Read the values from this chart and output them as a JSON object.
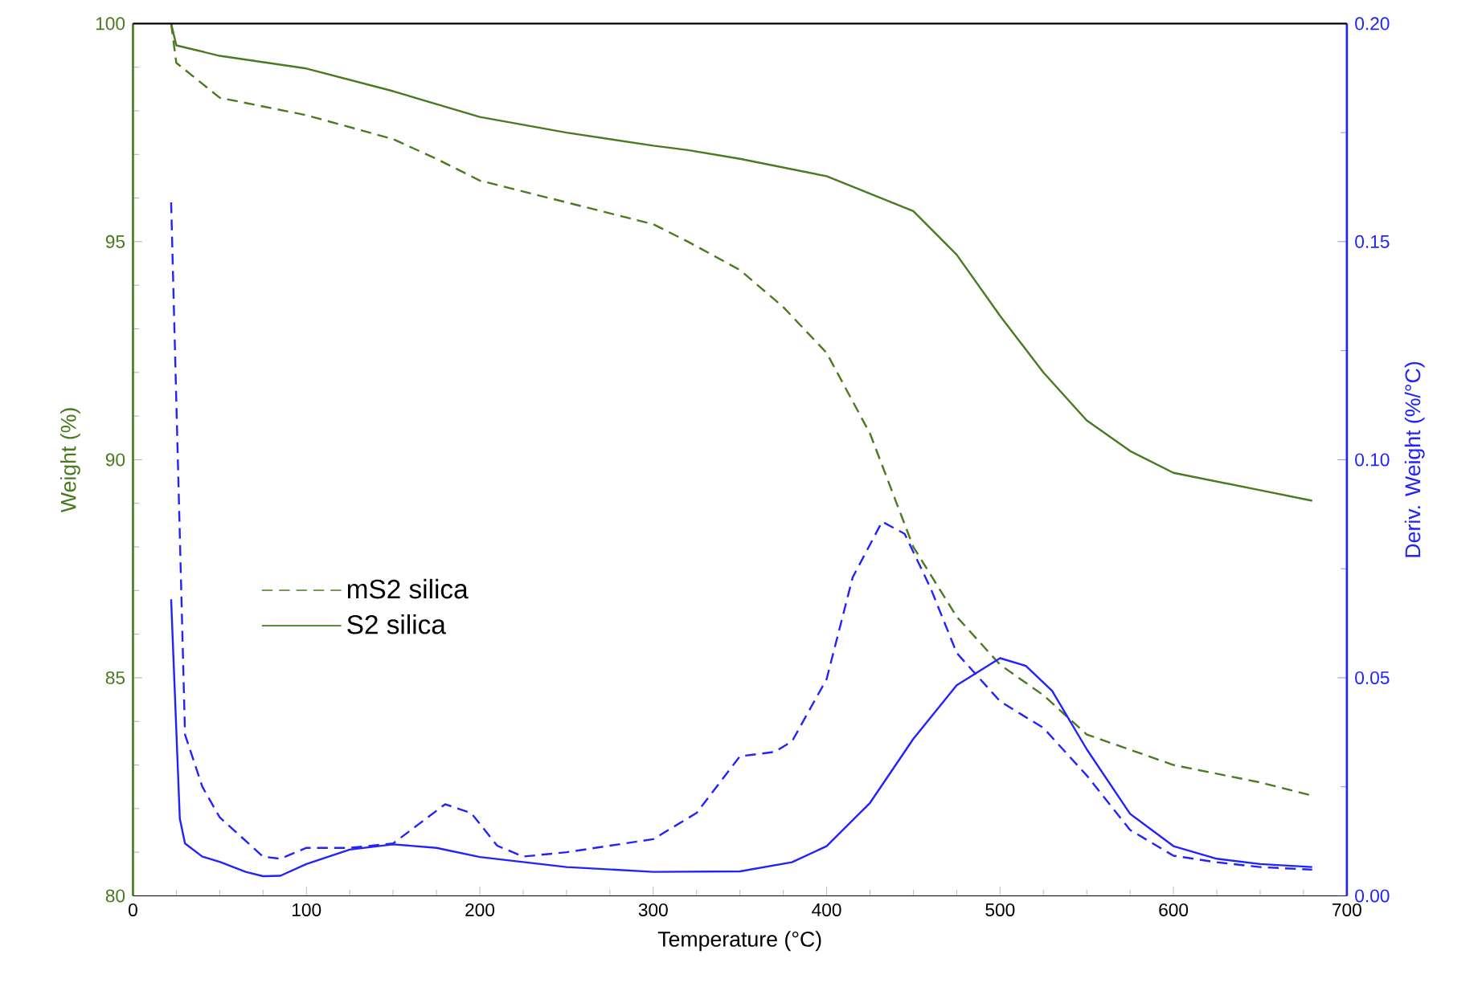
{
  "chart_data": {
    "type": "line",
    "xlabel": "Temperature (°C)",
    "ylabel": "Weight (%)",
    "y2label": "Deriv. Weight (%/°C)",
    "xlim": [
      0,
      700
    ],
    "xticks": [
      0,
      100,
      200,
      300,
      400,
      500,
      600,
      700
    ],
    "ylim": [
      80,
      100
    ],
    "yticks": [
      80,
      85,
      90,
      95,
      100
    ],
    "y2lim": [
      0,
      0.2
    ],
    "y2ticks": [
      {
        "value": 0,
        "label": "0.00"
      },
      {
        "value": 0.05,
        "label": "0.05"
      },
      {
        "value": 0.1,
        "label": "0.10"
      },
      {
        "value": 0.15,
        "label": "0.15"
      },
      {
        "value": 0.2,
        "label": "0.20"
      }
    ],
    "legend": "center left",
    "grid": false,
    "series": [
      {
        "name": "mS2 silica",
        "color": "#4a7a20",
        "line_style": "dashed",
        "x": [
          22,
          25,
          50,
          100,
          150,
          175,
          200,
          250,
          300,
          320,
          350,
          375,
          400,
          425,
          450,
          475,
          500,
          525,
          550,
          600,
          650,
          680
        ],
        "values": [
          100,
          99.1,
          98.3,
          97.9,
          97.35,
          96.9,
          96.4,
          95.9,
          95.4,
          95.0,
          94.35,
          93.5,
          92.45,
          90.6,
          88.0,
          86.4,
          85.3,
          84.6,
          83.7,
          83.0,
          82.6,
          82.3
        ]
      },
      {
        "name": "S2 silica",
        "color": "#4a7a20",
        "line_style": "solid",
        "x": [
          22,
          25,
          50,
          100,
          150,
          200,
          250,
          300,
          320,
          350,
          400,
          450,
          475,
          500,
          525,
          550,
          575,
          600,
          650,
          680
        ],
        "values": [
          100,
          99.5,
          99.26,
          98.97,
          98.45,
          97.86,
          97.5,
          97.2,
          97.1,
          96.9,
          96.5,
          95.7,
          94.7,
          93.3,
          92.0,
          90.9,
          90.2,
          89.7,
          89.3,
          89.06
        ]
      },
      {
        "color": "#2222ff",
        "line_style": "dashed",
        "axis": "y2",
        "x": [
          22,
          30,
          40,
          50,
          75,
          85,
          100,
          125,
          150,
          165,
          180,
          195,
          210,
          225,
          250,
          275,
          300,
          325,
          350,
          370,
          380,
          400,
          415,
          432,
          445,
          460,
          475,
          500,
          525,
          550,
          575,
          600,
          625,
          650,
          680
        ],
        "values": [
          0.159,
          0.037,
          0.025,
          0.018,
          0.009,
          0.0085,
          0.011,
          0.011,
          0.012,
          0.0165,
          0.021,
          0.019,
          0.0115,
          0.009,
          0.01,
          0.0115,
          0.013,
          0.019,
          0.032,
          0.033,
          0.0354,
          0.0497,
          0.073,
          0.0858,
          0.083,
          0.0705,
          0.0557,
          0.0446,
          0.0385,
          0.0276,
          0.0151,
          0.0092,
          0.0077,
          0.0066,
          0.006
        ]
      },
      {
        "color": "#2222ff",
        "line_style": "solid",
        "axis": "y2",
        "x": [
          22,
          27,
          30,
          40,
          50,
          65,
          75,
          85,
          100,
          125,
          150,
          175,
          200,
          250,
          300,
          350,
          380,
          400,
          425,
          450,
          475,
          500,
          515,
          530,
          550,
          575,
          600,
          625,
          650,
          680
        ],
        "values": [
          0.068,
          0.0177,
          0.012,
          0.009,
          0.0078,
          0.0055,
          0.0045,
          0.0046,
          0.0073,
          0.0106,
          0.0118,
          0.011,
          0.0089,
          0.0066,
          0.0055,
          0.0056,
          0.0077,
          0.0114,
          0.0213,
          0.036,
          0.0483,
          0.0545,
          0.0527,
          0.047,
          0.0336,
          0.0188,
          0.0114,
          0.0085,
          0.0073,
          0.0066
        ]
      }
    ]
  }
}
